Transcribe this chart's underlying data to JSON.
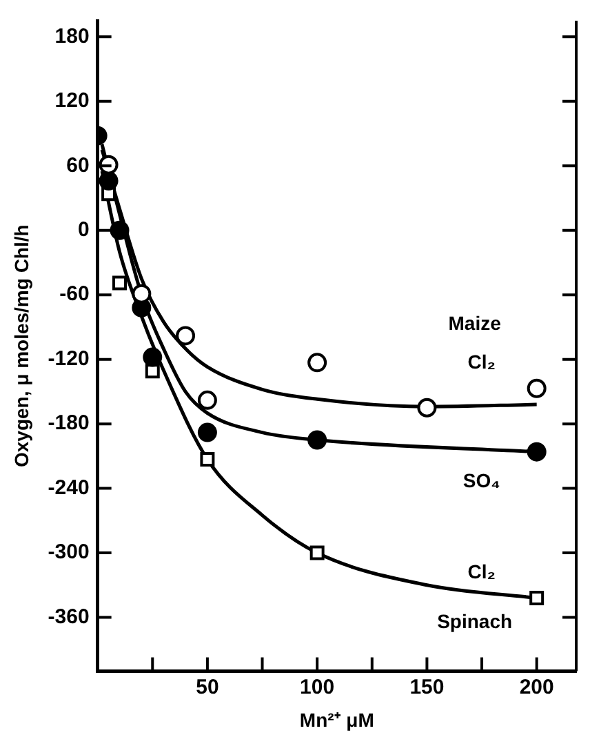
{
  "chart_data": {
    "type": "scatter",
    "xlabel": "Mn²⁺ μM",
    "ylabel": "Oxygen, μ moles/mg Chl/h",
    "xlim": [
      0,
      218
    ],
    "xticks": [
      {
        "value": 25,
        "label": null
      },
      50,
      {
        "value": 75,
        "label": null
      },
      100,
      {
        "value": 125,
        "label": null
      },
      150,
      {
        "value": 175,
        "label": null
      },
      200
    ],
    "ylim": [
      -410,
      195
    ],
    "yticks": [
      180,
      120,
      60,
      0,
      -60,
      -120,
      -180,
      -240,
      -300,
      -360
    ],
    "grid": false,
    "legend": false,
    "annotations": [
      "Maize",
      "Spinach"
    ],
    "series": [
      {
        "name": "Cl₂",
        "marker": "circle",
        "color": "#ffffff",
        "x": [
          5,
          20,
          40,
          50,
          100,
          150,
          200
        ],
        "values": [
          61,
          -59,
          -98,
          -158,
          -123,
          -165,
          -147
        ]
      },
      {
        "name": "SO₄",
        "marker": "circle",
        "color": "#000000",
        "x": [
          0,
          5,
          10,
          20,
          25,
          50,
          100,
          200
        ],
        "values": [
          88,
          46,
          0,
          -72,
          -118,
          -188,
          -195,
          -206
        ]
      },
      {
        "name": "Cl₂",
        "marker": "square",
        "color": "#ffffff",
        "x": [
          5,
          10,
          25,
          50,
          100,
          200
        ],
        "values": [
          34,
          -49,
          -131,
          -213,
          -300,
          -342
        ]
      },
      {
        "type": "line",
        "marker": "none",
        "color": "#000000",
        "x": [
          2,
          10,
          20,
          30,
          40,
          50,
          75,
          100,
          150,
          200
        ],
        "values": [
          75,
          20,
          -45,
          -85,
          -110,
          -127,
          -148,
          -157,
          -164,
          -162
        ]
      },
      {
        "type": "line",
        "marker": "none",
        "color": "#000000",
        "x": [
          2,
          10,
          20,
          30,
          40,
          50,
          75,
          100,
          200
        ],
        "values": [
          80,
          15,
          -60,
          -110,
          -150,
          -170,
          -188,
          -195,
          -206
        ]
      },
      {
        "type": "line",
        "marker": "none",
        "color": "#000000",
        "x": [
          2,
          10,
          20,
          30,
          50,
          75,
          100,
          150,
          200
        ],
        "values": [
          55,
          -20,
          -80,
          -130,
          -213,
          -265,
          -300,
          -330,
          -342
        ]
      }
    ]
  }
}
